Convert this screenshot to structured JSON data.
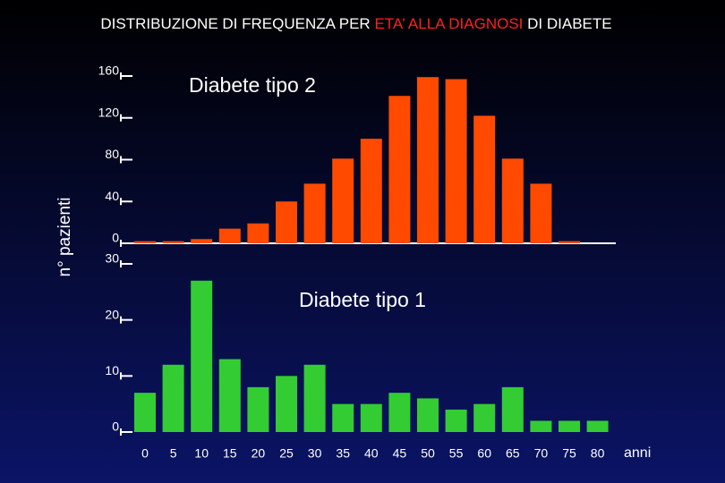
{
  "title_parts": [
    "DISTRIBUZIONE DI FREQUENZA PER",
    "ETA’ ALLA DIAGNOSI",
    "DI DIABETE"
  ],
  "y_label": "n° pazienti",
  "x_label": "anni",
  "chart_data": [
    {
      "type": "bar",
      "annotation": "Diabete tipo 2",
      "color": "#ff4a00",
      "values": [
        2,
        2,
        4,
        14,
        19,
        40,
        57,
        81,
        100,
        141,
        159,
        157,
        122,
        81,
        57,
        2,
        0
      ],
      "ylim": [
        0,
        160
      ],
      "yticks": [
        0,
        40,
        80,
        120,
        160
      ]
    },
    {
      "type": "bar",
      "annotation": "Diabete tipo 1",
      "color": "#33cc33",
      "categories": [
        "0",
        "5",
        "10",
        "15",
        "20",
        "25",
        "30",
        "35",
        "40",
        "45",
        "50",
        "55",
        "60",
        "65",
        "70",
        "75",
        "80"
      ],
      "values": [
        7,
        12,
        27,
        13,
        8,
        10,
        12,
        5,
        5,
        7,
        6,
        4,
        5,
        8,
        2,
        2,
        2
      ],
      "ylim": [
        0,
        30
      ],
      "yticks": [
        0,
        10,
        20,
        30
      ]
    }
  ]
}
